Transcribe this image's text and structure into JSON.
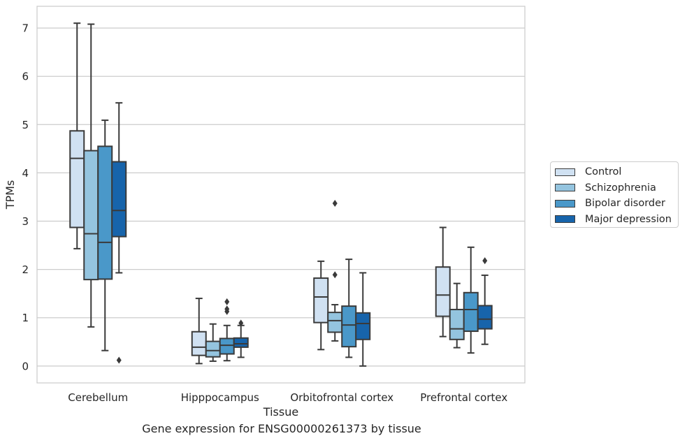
{
  "chart_data": {
    "type": "boxplot",
    "xlabel": "Tissue",
    "ylabel": "TPMs",
    "caption": "Gene expression for ENSG00000261373 by tissue",
    "ylim": [
      -0.35,
      7.45
    ],
    "yticks": [
      0,
      1,
      2,
      3,
      4,
      5,
      6,
      7
    ],
    "grid": "horizontal",
    "legend_position": "right",
    "categories": [
      "Cerebellum",
      "Hipppocampus",
      "Orbitofrontal cortex",
      "Prefrontal cortex"
    ],
    "series": [
      {
        "name": "Control",
        "color": "#d0e1f2",
        "boxes": [
          {
            "whislo": 2.43,
            "q1": 2.87,
            "med": 4.3,
            "q3": 4.87,
            "whishi": 7.1,
            "fliers": []
          },
          {
            "whislo": 0.05,
            "q1": 0.22,
            "med": 0.39,
            "q3": 0.71,
            "whishi": 1.4,
            "fliers": []
          },
          {
            "whislo": 0.34,
            "q1": 0.9,
            "med": 1.43,
            "q3": 1.82,
            "whishi": 2.17,
            "fliers": []
          },
          {
            "whislo": 0.61,
            "q1": 1.03,
            "med": 1.47,
            "q3": 2.05,
            "whishi": 2.87,
            "fliers": []
          }
        ]
      },
      {
        "name": "Schizophrenia",
        "color": "#94c4df",
        "boxes": [
          {
            "whislo": 0.81,
            "q1": 1.79,
            "med": 2.74,
            "q3": 4.46,
            "whishi": 7.08,
            "fliers": []
          },
          {
            "whislo": 0.1,
            "q1": 0.19,
            "med": 0.32,
            "q3": 0.51,
            "whishi": 0.87,
            "fliers": []
          },
          {
            "whislo": 0.52,
            "q1": 0.7,
            "med": 0.94,
            "q3": 1.11,
            "whishi": 1.27,
            "fliers": [
              1.89,
              3.37
            ]
          },
          {
            "whislo": 0.38,
            "q1": 0.55,
            "med": 0.77,
            "q3": 1.17,
            "whishi": 1.71,
            "fliers": []
          }
        ]
      },
      {
        "name": "Bipolar disorder",
        "color": "#4a98c9",
        "boxes": [
          {
            "whislo": 0.32,
            "q1": 1.8,
            "med": 2.56,
            "q3": 4.55,
            "whishi": 5.09,
            "fliers": []
          },
          {
            "whislo": 0.11,
            "q1": 0.25,
            "med": 0.43,
            "q3": 0.57,
            "whishi": 0.84,
            "fliers": [
              1.13,
              1.18,
              1.33
            ]
          },
          {
            "whislo": 0.18,
            "q1": 0.4,
            "med": 0.85,
            "q3": 1.24,
            "whishi": 2.21,
            "fliers": []
          },
          {
            "whislo": 0.27,
            "q1": 0.72,
            "med": 1.17,
            "q3": 1.52,
            "whishi": 2.46,
            "fliers": []
          }
        ]
      },
      {
        "name": "Major depression",
        "color": "#1764ab",
        "boxes": [
          {
            "whislo": 1.93,
            "q1": 2.68,
            "med": 3.22,
            "q3": 4.23,
            "whishi": 5.45,
            "fliers": [
              0.12
            ]
          },
          {
            "whislo": 0.18,
            "q1": 0.39,
            "med": 0.46,
            "q3": 0.58,
            "whishi": 0.84,
            "fliers": [
              0.89
            ]
          },
          {
            "whislo": 0.0,
            "q1": 0.55,
            "med": 0.88,
            "q3": 1.1,
            "whishi": 1.93,
            "fliers": []
          },
          {
            "whislo": 0.45,
            "q1": 0.77,
            "med": 0.97,
            "q3": 1.25,
            "whishi": 1.88,
            "fliers": [
              2.18
            ]
          }
        ]
      }
    ]
  }
}
